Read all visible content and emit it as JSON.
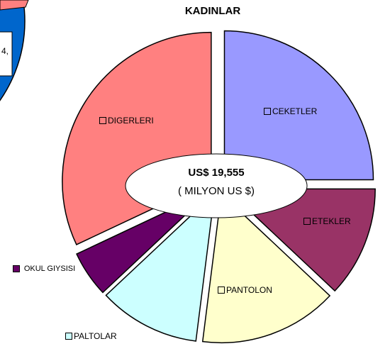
{
  "fragment_text": "4,",
  "chart_data": {
    "type": "pie",
    "title": "KADINLAR",
    "center_label": {
      "value": "US$ 19,555",
      "unit": "( MILYON US $)"
    },
    "categories": [
      "CEKETLER",
      "ETEKLER",
      "PANTOLON",
      "PALTOLAR",
      "OKUL GIYSISI",
      "DIGERLERI"
    ],
    "values": [
      25,
      12,
      15,
      11,
      5,
      32
    ],
    "colors": [
      "#9999ff",
      "#993366",
      "#ffffcc",
      "#ccffff",
      "#660066",
      "#ff8080"
    ]
  }
}
